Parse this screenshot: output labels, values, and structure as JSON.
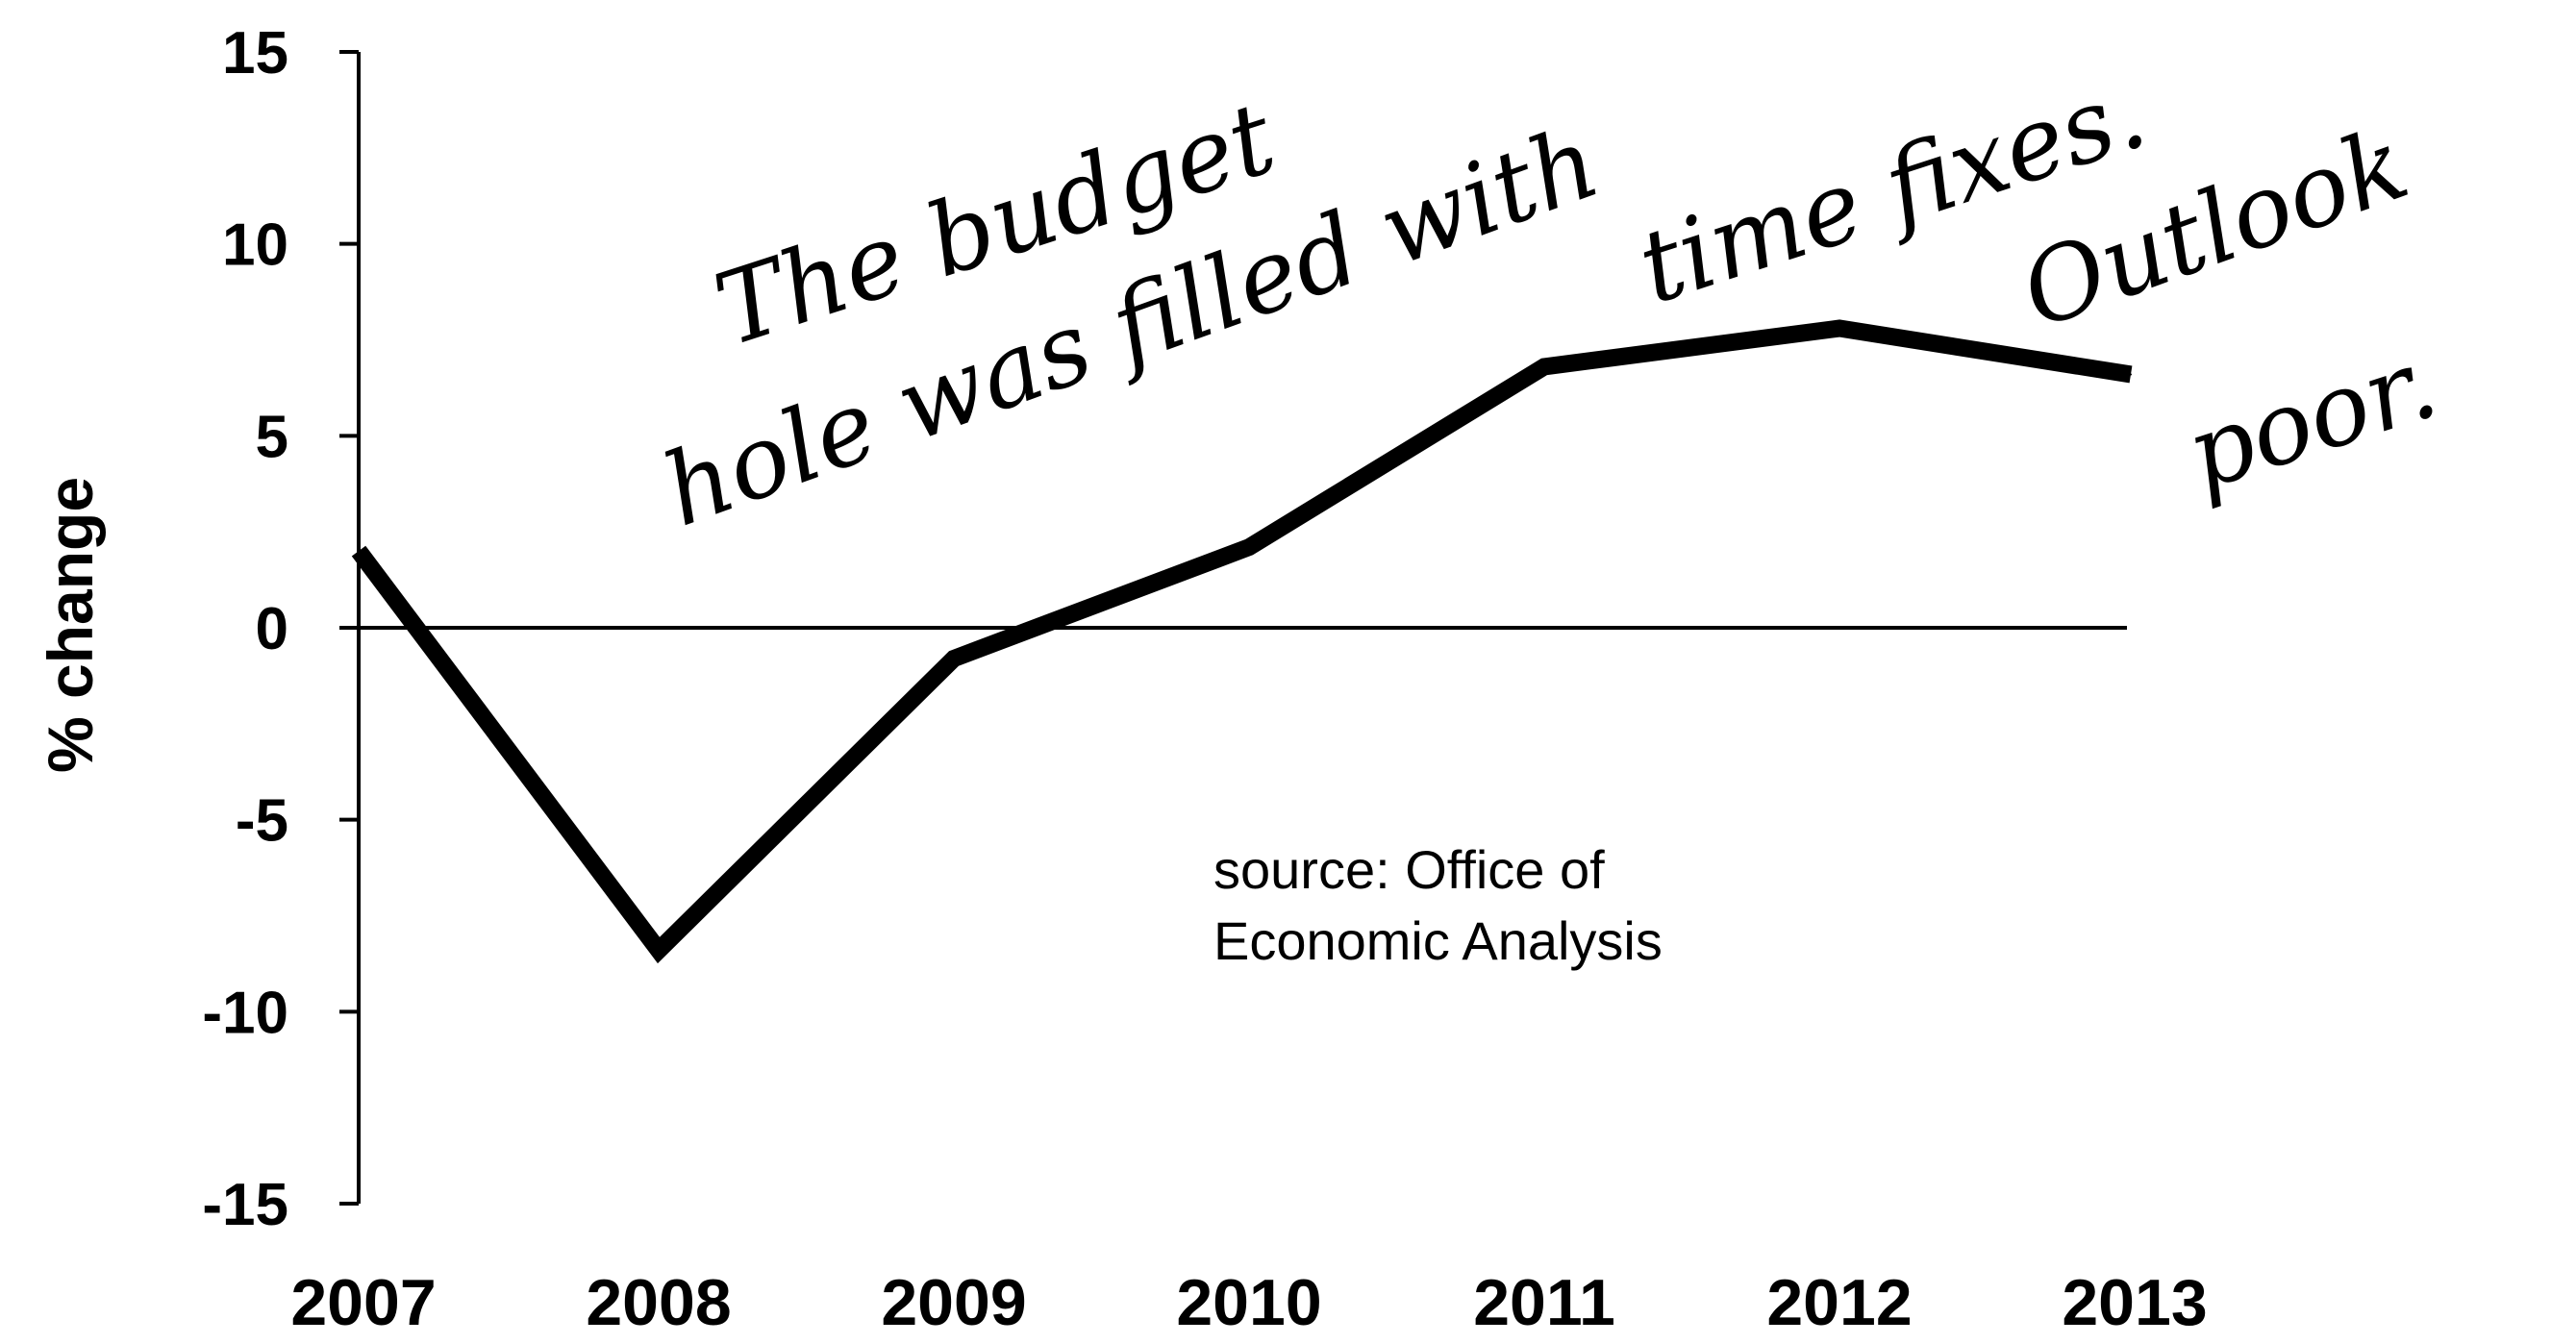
{
  "chart_data": {
    "type": "line",
    "title": "",
    "xlabel": "",
    "ylabel": "% change",
    "categories": [
      "2007",
      "2008",
      "2009",
      "2010",
      "2011",
      "2012",
      "2013"
    ],
    "series": [
      {
        "values": [
          2.0,
          -8.4,
          -0.8,
          2.1,
          6.8,
          7.8,
          6.6
        ]
      }
    ],
    "ylim": [
      -15,
      15
    ],
    "yticks": [
      "15",
      "10",
      "5",
      "0",
      "-5",
      "-10",
      "-15"
    ],
    "grid": false,
    "zero_line": true,
    "source_note": [
      "source: Office of",
      "Economic Analysis"
    ],
    "handwritten_annotation": [
      "The budget",
      "hole was filled with",
      "time fixes.",
      "Outlook",
      "poor."
    ]
  }
}
